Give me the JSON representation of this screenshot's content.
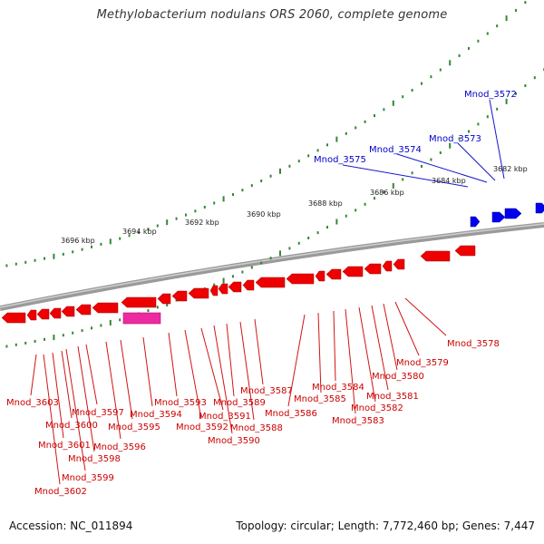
{
  "title": "Methylobacterium nodulans ORS 2060, complete genome",
  "footer": {
    "accession": "Accession: NC_011894",
    "stats": "Topology: circular; Length: 7,772,460 bp; Genes: 7,447"
  },
  "colors": {
    "backbone": "#8a8a8a",
    "forward_gene": "#0000ee",
    "reverse_gene": "#ee0000",
    "highlight": "#ee2aa0",
    "ticks": "#338833"
  },
  "scale_labels": [
    "3682 kbp",
    "3684 kbp",
    "3686 kbp",
    "3688 kbp",
    "3690 kbp",
    "3692 kbp",
    "3694 kbp",
    "3696 kbp"
  ],
  "gene_labels_forward": [
    "Mnod_3572",
    "Mnod_3573",
    "Mnod_3574",
    "Mnod_3575"
  ],
  "gene_labels_reverse": [
    "Mnod_3578",
    "Mnod_3579",
    "Mnod_3580",
    "Mnod_3581",
    "Mnod_3582",
    "Mnod_3583",
    "Mnod_3584",
    "Mnod_3585",
    "Mnod_3586",
    "Mnod_3587",
    "Mnod_3588",
    "Mnod_3589",
    "Mnod_3590",
    "Mnod_3591",
    "Mnod_3592",
    "Mnod_3593",
    "Mnod_3594",
    "Mnod_3595",
    "Mnod_3596",
    "Mnod_3597",
    "Mnod_3598",
    "Mnod_3599",
    "Mnod_3600",
    "Mnod_3601",
    "Mnod_3602",
    "Mnod_3603"
  ]
}
